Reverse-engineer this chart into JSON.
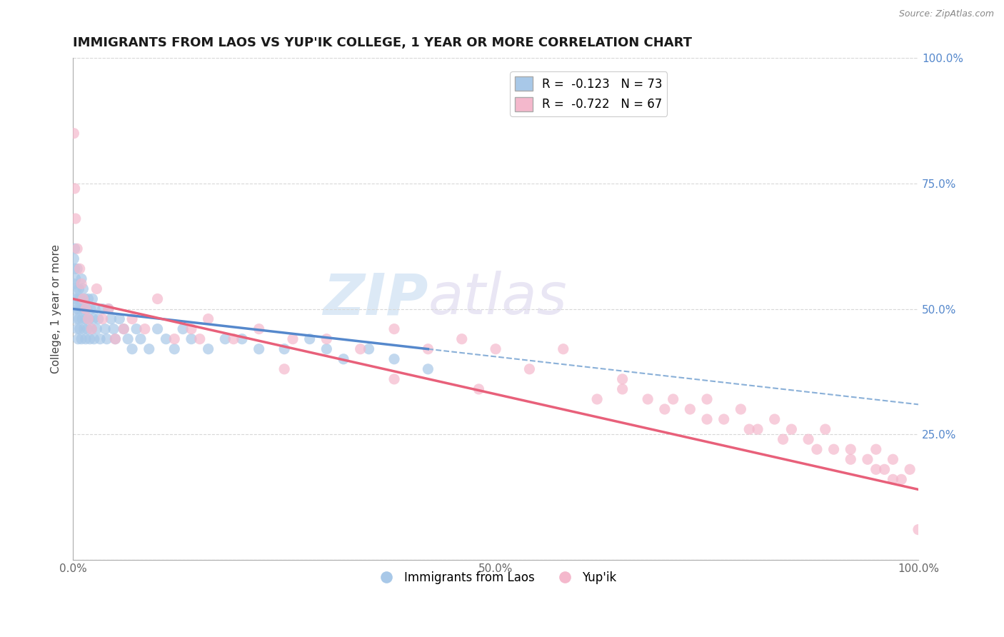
{
  "title": "IMMIGRANTS FROM LAOS VS YUP'IK COLLEGE, 1 YEAR OR MORE CORRELATION CHART",
  "source": "Source: ZipAtlas.com",
  "ylabel": "College, 1 year or more",
  "xlim": [
    0.0,
    1.0
  ],
  "ylim": [
    0.0,
    1.0
  ],
  "xticks": [
    0.0,
    0.25,
    0.5,
    0.75,
    1.0
  ],
  "yticks": [
    0.0,
    0.25,
    0.5,
    0.75,
    1.0
  ],
  "xticklabels": [
    "0.0%",
    "",
    "50.0%",
    "",
    "100.0%"
  ],
  "yticklabels": [
    "",
    "",
    "",
    "",
    ""
  ],
  "right_yticklabels": [
    "",
    "25.0%",
    "50.0%",
    "75.0%",
    "100.0%"
  ],
  "right_yticks": [
    0.0,
    0.25,
    0.5,
    0.75,
    1.0
  ],
  "legend_r1": "R =  -0.123   N = 73",
  "legend_r2": "R =  -0.722   N = 67",
  "color_blue": "#a8c8e8",
  "color_pink": "#f4b8cc",
  "color_line_blue": "#5588cc",
  "color_line_pink": "#e8607a",
  "color_dashed": "#8ab0d8",
  "background_color": "#ffffff",
  "grid_color": "#d8d8d8",
  "blue_x": [
    0.001,
    0.001,
    0.002,
    0.002,
    0.002,
    0.003,
    0.003,
    0.004,
    0.004,
    0.005,
    0.005,
    0.005,
    0.006,
    0.006,
    0.007,
    0.007,
    0.008,
    0.008,
    0.009,
    0.01,
    0.01,
    0.011,
    0.011,
    0.012,
    0.012,
    0.013,
    0.014,
    0.015,
    0.015,
    0.016,
    0.017,
    0.018,
    0.019,
    0.02,
    0.021,
    0.022,
    0.023,
    0.024,
    0.025,
    0.026,
    0.028,
    0.03,
    0.032,
    0.035,
    0.038,
    0.04,
    0.042,
    0.045,
    0.048,
    0.05,
    0.055,
    0.06,
    0.065,
    0.07,
    0.075,
    0.08,
    0.09,
    0.1,
    0.11,
    0.12,
    0.13,
    0.14,
    0.16,
    0.18,
    0.2,
    0.22,
    0.25,
    0.28,
    0.3,
    0.32,
    0.35,
    0.38,
    0.42
  ],
  "blue_y": [
    0.6,
    0.55,
    0.58,
    0.52,
    0.62,
    0.5,
    0.56,
    0.48,
    0.54,
    0.46,
    0.52,
    0.58,
    0.44,
    0.5,
    0.48,
    0.54,
    0.46,
    0.52,
    0.5,
    0.56,
    0.44,
    0.52,
    0.48,
    0.5,
    0.54,
    0.46,
    0.52,
    0.48,
    0.44,
    0.5,
    0.46,
    0.52,
    0.48,
    0.44,
    0.5,
    0.46,
    0.52,
    0.48,
    0.44,
    0.5,
    0.46,
    0.48,
    0.44,
    0.5,
    0.46,
    0.44,
    0.5,
    0.48,
    0.46,
    0.44,
    0.48,
    0.46,
    0.44,
    0.42,
    0.46,
    0.44,
    0.42,
    0.46,
    0.44,
    0.42,
    0.46,
    0.44,
    0.42,
    0.44,
    0.44,
    0.42,
    0.42,
    0.44,
    0.42,
    0.4,
    0.42,
    0.4,
    0.38
  ],
  "pink_x": [
    0.001,
    0.002,
    0.003,
    0.005,
    0.008,
    0.01,
    0.012,
    0.015,
    0.018,
    0.022,
    0.028,
    0.035,
    0.042,
    0.05,
    0.06,
    0.07,
    0.085,
    0.1,
    0.12,
    0.14,
    0.16,
    0.19,
    0.22,
    0.26,
    0.3,
    0.34,
    0.38,
    0.42,
    0.46,
    0.5,
    0.54,
    0.58,
    0.62,
    0.65,
    0.68,
    0.71,
    0.73,
    0.75,
    0.77,
    0.79,
    0.81,
    0.83,
    0.85,
    0.87,
    0.89,
    0.9,
    0.92,
    0.94,
    0.95,
    0.96,
    0.97,
    0.98,
    0.99,
    1.0,
    0.65,
    0.7,
    0.75,
    0.8,
    0.84,
    0.88,
    0.92,
    0.95,
    0.97,
    0.15,
    0.25,
    0.38,
    0.48
  ],
  "pink_y": [
    0.85,
    0.74,
    0.68,
    0.62,
    0.58,
    0.55,
    0.52,
    0.5,
    0.48,
    0.46,
    0.54,
    0.48,
    0.5,
    0.44,
    0.46,
    0.48,
    0.46,
    0.52,
    0.44,
    0.46,
    0.48,
    0.44,
    0.46,
    0.44,
    0.44,
    0.42,
    0.46,
    0.42,
    0.44,
    0.42,
    0.38,
    0.42,
    0.32,
    0.34,
    0.32,
    0.32,
    0.3,
    0.32,
    0.28,
    0.3,
    0.26,
    0.28,
    0.26,
    0.24,
    0.26,
    0.22,
    0.22,
    0.2,
    0.22,
    0.18,
    0.2,
    0.16,
    0.18,
    0.06,
    0.36,
    0.3,
    0.28,
    0.26,
    0.24,
    0.22,
    0.2,
    0.18,
    0.16,
    0.44,
    0.38,
    0.36,
    0.34
  ]
}
